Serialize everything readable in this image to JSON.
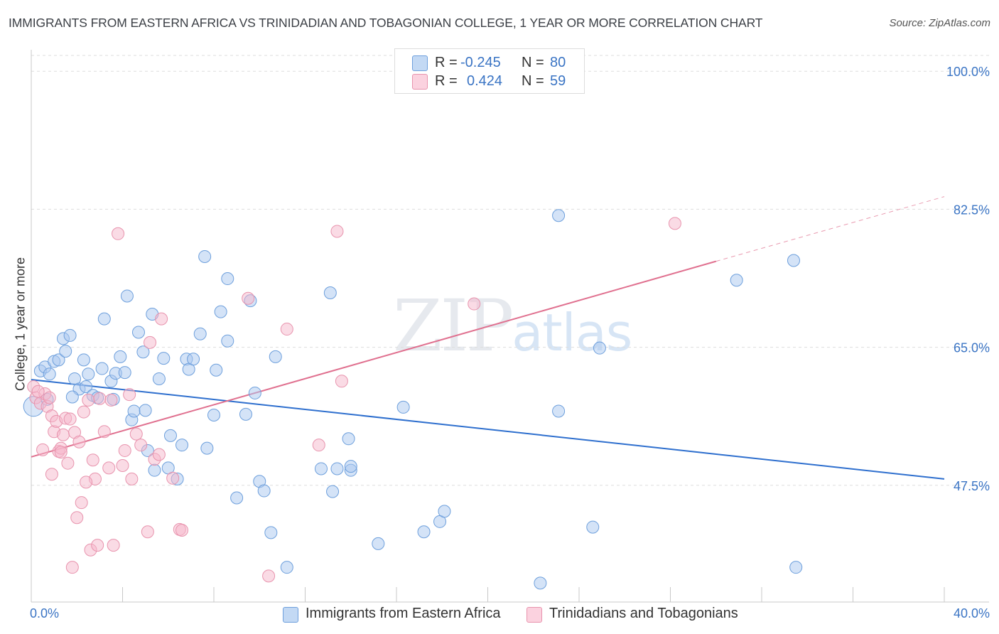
{
  "header": {
    "title": "IMMIGRANTS FROM EASTERN AFRICA VS TRINIDADIAN AND TOBAGONIAN COLLEGE, 1 YEAR OR MORE CORRELATION CHART",
    "source": "Source: ZipAtlas.com"
  },
  "watermark": {
    "zip": "ZIP",
    "atlas": "atlas"
  },
  "legend": {
    "rows": [
      {
        "r_label": "R =",
        "r_value": "-0.245",
        "n_label": "N =",
        "n_value": "80",
        "color": "#a9c8ef"
      },
      {
        "r_label": "R =",
        "r_value": "0.424",
        "n_label": "N =",
        "n_value": "59",
        "color": "#f5b8cb"
      }
    ]
  },
  "bottom_legend": {
    "series1": "Immigrants from Eastern Africa",
    "series2": "Trinidadians and Tobagonians"
  },
  "colors": {
    "blue_fill": "#a9c8ef",
    "blue_stroke": "#6d9fdc",
    "blue_line": "#2e6fce",
    "pink_fill": "#f5b8cb",
    "pink_stroke": "#e893ad",
    "pink_line": "#e0708f",
    "axis_text": "#3a74c4",
    "grid": "#dddddd"
  },
  "chart_data": {
    "type": "scatter",
    "title": "IMMIGRANTS FROM EASTERN AFRICA VS TRINIDADIAN AND TOBAGONIAN COLLEGE, 1 YEAR OR MORE CORRELATION CHART",
    "xlabel": "",
    "ylabel": "College, 1 year or more",
    "xlim": [
      0,
      40
    ],
    "ylim": [
      32.7,
      102
    ],
    "x_tick_labels": [
      "0.0%",
      "40.0%"
    ],
    "y_ticks": [
      47.5,
      65.0,
      82.5,
      100.0
    ],
    "y_tick_labels": [
      "47.5%",
      "65.0%",
      "82.5%",
      "100.0%"
    ],
    "grid": true,
    "series": [
      {
        "name": "Immigrants from Eastern Africa",
        "R": -0.245,
        "N": 80,
        "trend": {
          "x": [
            0,
            40
          ],
          "y": [
            60.9,
            48.3
          ]
        },
        "points": [
          [
            0.1,
            57.5
          ],
          [
            0.4,
            62.0
          ],
          [
            0.6,
            62.5
          ],
          [
            0.8,
            61.6
          ],
          [
            0.7,
            58.4
          ],
          [
            1.0,
            63.2
          ],
          [
            1.2,
            63.4
          ],
          [
            1.4,
            66.1
          ],
          [
            1.5,
            64.5
          ],
          [
            1.7,
            66.5
          ],
          [
            1.9,
            61.0
          ],
          [
            2.1,
            59.7
          ],
          [
            2.3,
            63.4
          ],
          [
            2.4,
            60.0
          ],
          [
            2.5,
            61.6
          ],
          [
            2.7,
            58.9
          ],
          [
            2.9,
            58.6
          ],
          [
            3.1,
            62.3
          ],
          [
            3.2,
            68.6
          ],
          [
            3.5,
            60.7
          ],
          [
            3.7,
            61.7
          ],
          [
            3.9,
            63.8
          ],
          [
            4.1,
            61.8
          ],
          [
            4.2,
            71.5
          ],
          [
            4.4,
            55.8
          ],
          [
            4.5,
            56.9
          ],
          [
            4.7,
            66.9
          ],
          [
            4.9,
            64.4
          ],
          [
            5.1,
            51.9
          ],
          [
            5.3,
            69.2
          ],
          [
            5.4,
            49.4
          ],
          [
            5.6,
            61.0
          ],
          [
            5.8,
            63.6
          ],
          [
            6.0,
            49.7
          ],
          [
            6.1,
            53.8
          ],
          [
            6.4,
            48.3
          ],
          [
            6.6,
            52.6
          ],
          [
            6.8,
            63.5
          ],
          [
            6.9,
            62.2
          ],
          [
            7.1,
            63.5
          ],
          [
            7.4,
            66.7
          ],
          [
            7.7,
            52.2
          ],
          [
            7.6,
            76.5
          ],
          [
            8.0,
            56.4
          ],
          [
            8.1,
            62.1
          ],
          [
            8.3,
            69.5
          ],
          [
            8.6,
            65.8
          ],
          [
            8.6,
            73.7
          ],
          [
            9.0,
            45.9
          ],
          [
            9.4,
            56.5
          ],
          [
            9.6,
            70.9
          ],
          [
            9.8,
            59.2
          ],
          [
            10.0,
            48.0
          ],
          [
            10.2,
            46.8
          ],
          [
            10.5,
            41.5
          ],
          [
            10.7,
            63.8
          ],
          [
            11.2,
            37.1
          ],
          [
            12.7,
            49.6
          ],
          [
            13.1,
            71.9
          ],
          [
            13.2,
            46.7
          ],
          [
            13.4,
            49.6
          ],
          [
            14.0,
            49.4
          ],
          [
            14.0,
            49.9
          ],
          [
            13.9,
            53.4
          ],
          [
            15.2,
            40.1
          ],
          [
            16.3,
            57.4
          ],
          [
            17.2,
            41.6
          ],
          [
            17.9,
            42.9
          ],
          [
            18.1,
            44.2
          ],
          [
            22.3,
            35.1
          ],
          [
            23.1,
            81.7
          ],
          [
            23.1,
            56.9
          ],
          [
            24.6,
            42.2
          ],
          [
            24.9,
            64.9
          ],
          [
            30.9,
            73.5
          ],
          [
            33.4,
            76.0
          ],
          [
            33.5,
            37.1
          ],
          [
            1.8,
            58.7
          ],
          [
            3.6,
            58.4
          ],
          [
            5.0,
            57.0
          ]
        ]
      },
      {
        "name": "Trinidadians and Tobagonians",
        "R": 0.424,
        "N": 59,
        "trend": {
          "x": [
            0,
            30.0
          ],
          "y": [
            51.1,
            75.9
          ]
        },
        "trend_dashed": {
          "x": [
            30.0,
            40
          ],
          "y": [
            75.9,
            84.1
          ]
        },
        "points": [
          [
            0.1,
            60.0
          ],
          [
            0.2,
            58.6
          ],
          [
            0.4,
            57.9
          ],
          [
            0.5,
            52.0
          ],
          [
            0.6,
            59.1
          ],
          [
            0.7,
            57.5
          ],
          [
            0.8,
            58.6
          ],
          [
            0.9,
            56.3
          ],
          [
            1.0,
            54.3
          ],
          [
            1.1,
            55.6
          ],
          [
            1.2,
            51.8
          ],
          [
            1.3,
            52.2
          ],
          [
            1.4,
            53.9
          ],
          [
            1.5,
            56.0
          ],
          [
            1.6,
            50.3
          ],
          [
            1.7,
            55.9
          ],
          [
            1.8,
            37.1
          ],
          [
            1.9,
            54.2
          ],
          [
            2.0,
            43.4
          ],
          [
            2.1,
            53.0
          ],
          [
            2.2,
            45.3
          ],
          [
            2.3,
            56.8
          ],
          [
            2.5,
            58.3
          ],
          [
            2.6,
            39.3
          ],
          [
            2.7,
            50.7
          ],
          [
            2.8,
            48.3
          ],
          [
            2.9,
            39.9
          ],
          [
            3.0,
            58.5
          ],
          [
            3.2,
            54.3
          ],
          [
            3.4,
            49.7
          ],
          [
            3.5,
            58.3
          ],
          [
            3.6,
            39.9
          ],
          [
            3.8,
            79.4
          ],
          [
            4.0,
            50.0
          ],
          [
            4.1,
            51.9
          ],
          [
            4.3,
            59.0
          ],
          [
            4.4,
            48.3
          ],
          [
            4.6,
            54.0
          ],
          [
            4.8,
            52.6
          ],
          [
            5.1,
            41.6
          ],
          [
            5.2,
            65.6
          ],
          [
            5.4,
            50.8
          ],
          [
            5.6,
            51.4
          ],
          [
            5.7,
            68.6
          ],
          [
            6.2,
            48.4
          ],
          [
            6.5,
            41.9
          ],
          [
            6.6,
            41.8
          ],
          [
            9.5,
            71.2
          ],
          [
            10.4,
            36.0
          ],
          [
            11.2,
            67.3
          ],
          [
            12.6,
            52.6
          ],
          [
            13.4,
            79.7
          ],
          [
            13.6,
            60.7
          ],
          [
            19.4,
            70.5
          ],
          [
            28.2,
            80.7
          ],
          [
            0.3,
            59.4
          ],
          [
            0.9,
            48.9
          ],
          [
            2.4,
            47.9
          ],
          [
            1.3,
            51.7
          ]
        ]
      }
    ]
  }
}
